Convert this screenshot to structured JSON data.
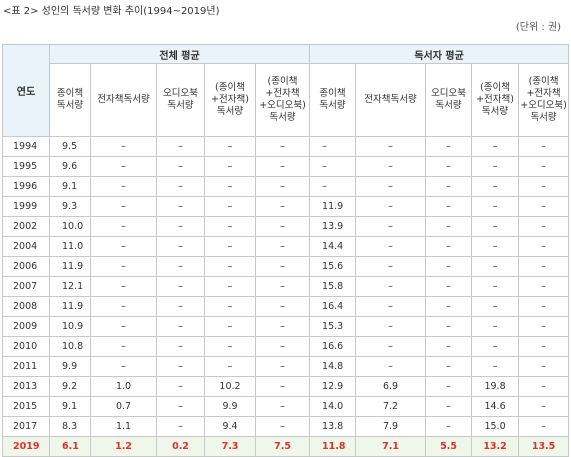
{
  "title": "<표 2> 성인의 독서량 변화 추이(1994~2019년)",
  "unit": "(단위 : 권)",
  "headers": {
    "year": "연도",
    "group_all": "전체  평균",
    "group_reader": "독서자  평균",
    "cols": [
      "종이책\n독서량",
      "전자책독서량",
      "오디오북\n독서량",
      "(종이책\n+전자책)\n독서량",
      "(종이책\n+전자책\n+오디오북)\n독서량"
    ]
  },
  "rows": [
    {
      "year": "1994",
      "v": [
        "9.5",
        "–",
        "–",
        "–",
        "–",
        "–",
        "–",
        "–",
        "–",
        "–"
      ]
    },
    {
      "year": "1995",
      "v": [
        "9.6",
        "–",
        "–",
        "–",
        "–",
        "–",
        "–",
        "–",
        "–",
        "–"
      ]
    },
    {
      "year": "1996",
      "v": [
        "9.1",
        "–",
        "–",
        "–",
        "–",
        "–",
        "–",
        "–",
        "–",
        "–"
      ]
    },
    {
      "year": "1999",
      "v": [
        "9.3",
        "–",
        "–",
        "–",
        "–",
        "11.9",
        "–",
        "–",
        "–",
        "–"
      ]
    },
    {
      "year": "2002",
      "v": [
        "10.0",
        "–",
        "–",
        "–",
        "–",
        "13.9",
        "–",
        "–",
        "–",
        "–"
      ]
    },
    {
      "year": "2004",
      "v": [
        "11.0",
        "–",
        "–",
        "–",
        "–",
        "14.4",
        "–",
        "–",
        "–",
        "–"
      ]
    },
    {
      "year": "2006",
      "v": [
        "11.9",
        "–",
        "–",
        "–",
        "–",
        "15.6",
        "–",
        "–",
        "–",
        "–"
      ]
    },
    {
      "year": "2007",
      "v": [
        "12.1",
        "–",
        "–",
        "–",
        "–",
        "15.8",
        "–",
        "–",
        "–",
        "–"
      ]
    },
    {
      "year": "2008",
      "v": [
        "11.9",
        "–",
        "–",
        "–",
        "–",
        "16.4",
        "–",
        "–",
        "–",
        "–"
      ]
    },
    {
      "year": "2009",
      "v": [
        "10.9",
        "–",
        "–",
        "–",
        "–",
        "15.3",
        "–",
        "–",
        "–",
        "–"
      ]
    },
    {
      "year": "2010",
      "v": [
        "10.8",
        "–",
        "–",
        "–",
        "–",
        "16.6",
        "–",
        "–",
        "–",
        "–"
      ]
    },
    {
      "year": "2011",
      "v": [
        "9.9",
        "–",
        "–",
        "–",
        "–",
        "14.8",
        "–",
        "–",
        "–",
        "–"
      ]
    },
    {
      "year": "2013",
      "v": [
        "9.2",
        "1.0",
        "–",
        "10.2",
        "–",
        "12.9",
        "6.9",
        "–",
        "19.8",
        "–"
      ]
    },
    {
      "year": "2015",
      "v": [
        "9.1",
        "0.7",
        "–",
        "9.9",
        "–",
        "14.0",
        "7.2",
        "–",
        "14.6",
        "–"
      ]
    },
    {
      "year": "2017",
      "v": [
        "8.3",
        "1.1",
        "–",
        "9.4",
        "–",
        "13.8",
        "7.9",
        "–",
        "15.0",
        "–"
      ]
    },
    {
      "year": "2019",
      "v": [
        "6.1",
        "1.2",
        "0.2",
        "7.3",
        "7.5",
        "11.8",
        "7.1",
        "5.5",
        "13.2",
        "13.5"
      ]
    }
  ],
  "highlight_year": "2019",
  "colors": {
    "header_bg": "#eaf2fa",
    "highlight_bg": "#eef7ea",
    "highlight_text": "#e0312a",
    "border": "#c8c8c8"
  }
}
